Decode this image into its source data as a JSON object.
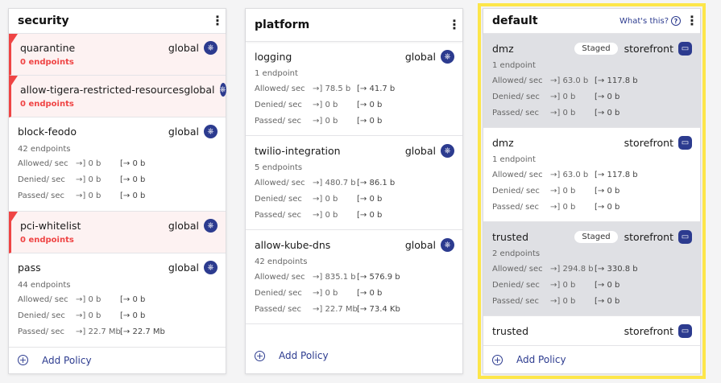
{
  "labels": {
    "allowed": "Allowed/ sec",
    "denied": "Denied/ sec",
    "passed": "Passed/ sec",
    "add_policy": "Add Policy",
    "whats_this": "What's this?",
    "staged": "Staged",
    "in_arrow": "→]",
    "out_arrow": "[→"
  },
  "colors": {
    "accent": "#2c3b8f",
    "warning": "#ef4444",
    "selected_outline": "#fde64a",
    "staged_bg": "#dfe0e4"
  },
  "tiers": [
    {
      "title": "security",
      "selected": false,
      "policies": [
        {
          "name": "quarantine",
          "ns": "global",
          "icon": "kubernetes-icon",
          "endpoints": "0 endpoints",
          "warn": true
        },
        {
          "name": "allow-tigera-restricted-resources",
          "ns": "global",
          "icon": "kubernetes-icon",
          "endpoints": "0 endpoints",
          "warn": true
        },
        {
          "name": "block-feodo",
          "ns": "global",
          "icon": "kubernetes-icon",
          "endpoints": "42 endpoints",
          "stats": [
            [
              "0 b",
              "0 b"
            ],
            [
              "0 b",
              "0 b"
            ],
            [
              "0 b",
              "0 b"
            ]
          ]
        },
        {
          "name": "pci-whitelist",
          "ns": "global",
          "icon": "kubernetes-icon",
          "endpoints": "0 endpoints",
          "warn": true
        },
        {
          "name": "pass",
          "ns": "global",
          "icon": "kubernetes-icon",
          "endpoints": "44 endpoints",
          "stats": [
            [
              "0 b",
              "0 b"
            ],
            [
              "0 b",
              "0 b"
            ],
            [
              "22.7 Mb",
              "22.7 Mb"
            ]
          ]
        }
      ]
    },
    {
      "title": "platform",
      "selected": false,
      "policies": [
        {
          "name": "logging",
          "ns": "global",
          "icon": "kubernetes-icon",
          "endpoints": "1 endpoint",
          "stats": [
            [
              "78.5 b",
              "41.7 b"
            ],
            [
              "0 b",
              "0 b"
            ],
            [
              "0 b",
              "0 b"
            ]
          ]
        },
        {
          "name": "twilio-integration",
          "ns": "global",
          "icon": "kubernetes-icon",
          "endpoints": "5 endpoints",
          "stats": [
            [
              "480.7 b",
              "86.1 b"
            ],
            [
              "0 b",
              "0 b"
            ],
            [
              "0 b",
              "0 b"
            ]
          ]
        },
        {
          "name": "allow-kube-dns",
          "ns": "global",
          "icon": "kubernetes-icon",
          "endpoints": "42 endpoints",
          "stats": [
            [
              "835.1 b",
              "576.9 b"
            ],
            [
              "0 b",
              "0 b"
            ],
            [
              "22.7 Mb",
              "73.4 Kb"
            ]
          ]
        }
      ]
    },
    {
      "title": "default",
      "selected": true,
      "whats_this": true,
      "policies": [
        {
          "name": "dmz",
          "ns": "storefront",
          "icon": "namespace-icon",
          "staged": true,
          "endpoints": "1 endpoint",
          "stats": [
            [
              "63.0 b",
              "117.8 b"
            ],
            [
              "0 b",
              "0 b"
            ],
            [
              "0 b",
              "0 b"
            ]
          ]
        },
        {
          "name": "dmz",
          "ns": "storefront",
          "icon": "namespace-icon",
          "endpoints": "1 endpoint",
          "stats": [
            [
              "63.0 b",
              "117.8 b"
            ],
            [
              "0 b",
              "0 b"
            ],
            [
              "0 b",
              "0 b"
            ]
          ]
        },
        {
          "name": "trusted",
          "ns": "storefront",
          "icon": "namespace-icon",
          "staged": true,
          "endpoints": "2 endpoints",
          "stats": [
            [
              "294.8 b",
              "330.8 b"
            ],
            [
              "0 b",
              "0 b"
            ],
            [
              "0 b",
              "0 b"
            ]
          ]
        },
        {
          "name": "trusted",
          "ns": "storefront",
          "icon": "namespace-icon"
        }
      ]
    }
  ]
}
